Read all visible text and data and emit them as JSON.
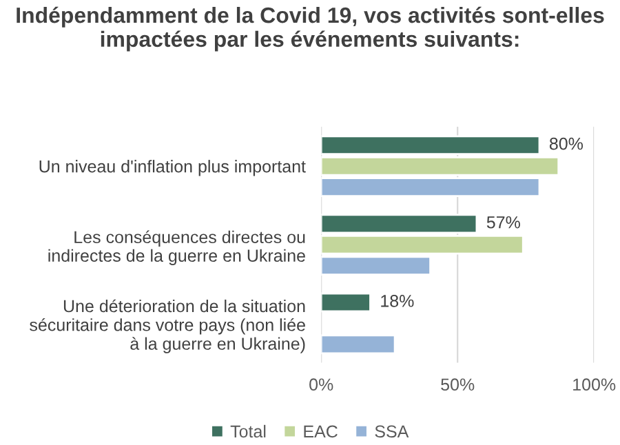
{
  "chart_data": {
    "type": "bar",
    "orientation": "horizontal",
    "title": "Indépendamment de la Covid 19, vos activités sont-elles impactées par les événements suivants:",
    "categories": [
      "Un niveau d'inflation plus important",
      "Les conséquences directes ou\nindirectes de la guerre en Ukraine",
      "Une déterioration de la situation\nsécuritaire dans votre pays (non liée\nà la guerre en Ukraine)"
    ],
    "series": [
      {
        "name": "Total",
        "color": "#3e7160",
        "values": [
          80,
          57,
          18
        ],
        "value_labels": [
          "80%",
          "57%",
          "18%"
        ]
      },
      {
        "name": "EAC",
        "color": "#c3d69b",
        "values": [
          87,
          74,
          null
        ]
      },
      {
        "name": "SSA",
        "color": "#95b3d7",
        "values": [
          80,
          40,
          27
        ]
      }
    ],
    "xlim": [
      0,
      100
    ],
    "xticks": [
      {
        "value": 0,
        "label": "0%"
      },
      {
        "value": 50,
        "label": "50%"
      },
      {
        "value": 100,
        "label": "100%"
      }
    ],
    "grid": "x",
    "legend": "bottom"
  }
}
